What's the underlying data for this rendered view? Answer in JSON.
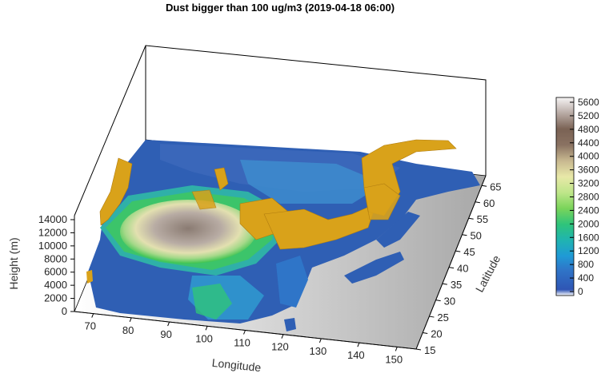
{
  "chart_data": {
    "type": "3d-surface",
    "title": "Dust bigger than 100 ug/m3 (2019-04-18 06:00)",
    "xlabel": "Longitude",
    "ylabel": "Latitude",
    "zlabel": "Height (m)",
    "x_ticks": [
      "70",
      "80",
      "90",
      "100",
      "110",
      "120",
      "130",
      "140",
      "150"
    ],
    "y_ticks": [
      "15",
      "20",
      "25",
      "30",
      "35",
      "40",
      "45",
      "50",
      "55",
      "60",
      "65"
    ],
    "z_ticks": [
      "0",
      "2000",
      "4000",
      "6000",
      "8000",
      "10000",
      "12000",
      "14000"
    ],
    "xlim": [
      65,
      155
    ],
    "ylim": [
      15,
      68
    ],
    "zlim": [
      0,
      14000
    ],
    "colorbar": {
      "ticks": [
        "0",
        "400",
        "800",
        "1200",
        "1600",
        "2000",
        "2400",
        "2800",
        "3200",
        "3600",
        "4000",
        "4400",
        "4800",
        "5200",
        "5600"
      ],
      "colors": [
        "#ffffff",
        "#2f55b4",
        "#2f75c8",
        "#1f9ad6",
        "#20b4b0",
        "#2fc47a",
        "#3cc450",
        "#7ad45a",
        "#bfe68a",
        "#e8e8a8",
        "#c8b890",
        "#a08a70",
        "#806a5a",
        "#a89890",
        "#d8d2d0",
        "#f4f2f2"
      ]
    },
    "dust_isosurface_color": "#d9a21a"
  }
}
